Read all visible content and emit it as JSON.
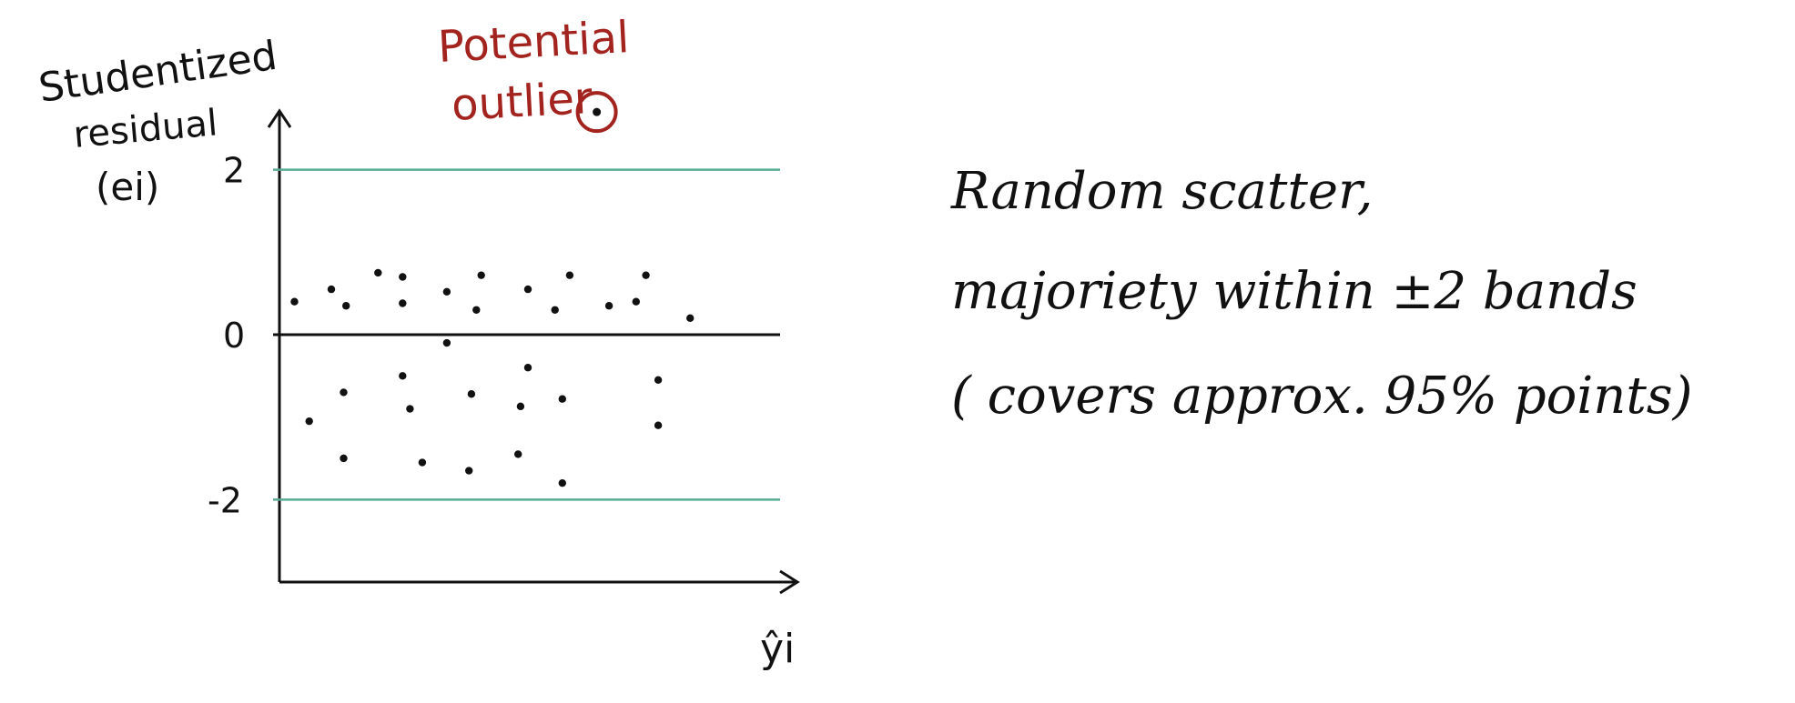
{
  "chart_data": {
    "type": "scatter",
    "ylabel": "Studentized residual (ei)",
    "xlabel": "ŷi",
    "yticks": [
      {
        "value": 2,
        "label": "2"
      },
      {
        "value": 0,
        "label": "0"
      },
      {
        "value": -2,
        "label": "-2"
      }
    ],
    "ylim": [
      -3.0,
      2.9
    ],
    "xlim": [
      0,
      20
    ],
    "reference_lines": [
      {
        "y": 2,
        "color": "#5aaa94"
      },
      {
        "y": 0,
        "color": "#111111"
      },
      {
        "y": -2,
        "color": "#5aaa94"
      }
    ],
    "points": [
      {
        "x": 0.5,
        "y": 0.4
      },
      {
        "x": 2.0,
        "y": 0.55
      },
      {
        "x": 2.6,
        "y": 0.35
      },
      {
        "x": 3.9,
        "y": 0.75
      },
      {
        "x": 4.9,
        "y": 0.7
      },
      {
        "x": 4.9,
        "y": 0.38
      },
      {
        "x": 6.7,
        "y": 0.52
      },
      {
        "x": 8.1,
        "y": 0.72
      },
      {
        "x": 7.9,
        "y": 0.3
      },
      {
        "x": 10.0,
        "y": 0.55
      },
      {
        "x": 11.1,
        "y": 0.3
      },
      {
        "x": 11.7,
        "y": 0.72
      },
      {
        "x": 13.3,
        "y": 0.35
      },
      {
        "x": 14.8,
        "y": 0.72
      },
      {
        "x": 14.4,
        "y": 0.4
      },
      {
        "x": 16.6,
        "y": 0.2
      },
      {
        "x": 6.7,
        "y": -0.1
      },
      {
        "x": 1.1,
        "y": -1.05
      },
      {
        "x": 2.5,
        "y": -0.7
      },
      {
        "x": 4.9,
        "y": -0.5
      },
      {
        "x": 5.2,
        "y": -0.9
      },
      {
        "x": 7.7,
        "y": -0.72
      },
      {
        "x": 10.0,
        "y": -0.4
      },
      {
        "x": 9.7,
        "y": -0.87
      },
      {
        "x": 11.4,
        "y": -0.78
      },
      {
        "x": 15.3,
        "y": -0.55
      },
      {
        "x": 15.3,
        "y": -1.1
      },
      {
        "x": 2.5,
        "y": -1.5
      },
      {
        "x": 5.7,
        "y": -1.55
      },
      {
        "x": 7.6,
        "y": -1.65
      },
      {
        "x": 9.6,
        "y": -1.45
      },
      {
        "x": 11.4,
        "y": -1.8
      }
    ],
    "outlier": {
      "x": 12.8,
      "y": 2.7,
      "label": "Potential outlier",
      "color": "#a3231f"
    }
  },
  "note": {
    "lines": [
      "Random scatter,",
      "majoriety within ±2 bands",
      "( covers approx. 95% points)"
    ]
  }
}
